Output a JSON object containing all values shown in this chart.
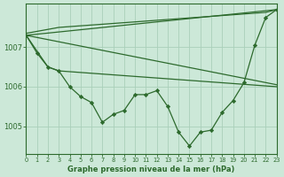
{
  "xlabel": "Graphe pression niveau de la mer (hPa)",
  "line_color": "#2d6a2d",
  "bg_color": "#cce8d8",
  "grid_color": "#aacfba",
  "yticks": [
    1005,
    1006,
    1007
  ],
  "ylim": [
    1004.3,
    1008.1
  ],
  "xlim": [
    0,
    23
  ],
  "figsize": [
    3.2,
    2.0
  ],
  "dpi": 100,
  "line1_x": [
    0,
    1,
    2,
    3,
    4,
    5,
    6,
    7,
    8,
    9,
    10,
    11,
    12,
    13,
    14,
    15,
    16,
    17,
    18,
    19,
    20,
    21,
    22,
    23
  ],
  "line1_y": [
    1007.35,
    1007.4,
    1007.45,
    1007.5,
    1007.52,
    1007.54,
    1007.56,
    1007.58,
    1007.6,
    1007.62,
    1007.64,
    1007.66,
    1007.68,
    1007.7,
    1007.72,
    1007.74,
    1007.76,
    1007.78,
    1007.8,
    1007.82,
    1007.84,
    1007.86,
    1007.88,
    1007.95
  ],
  "line2_x": [
    0,
    23
  ],
  "line2_y": [
    1007.3,
    1007.95
  ],
  "line3_x": [
    0,
    2,
    3,
    23
  ],
  "line3_y": [
    1007.3,
    1006.5,
    1006.4,
    1006.0
  ],
  "line4_x": [
    0,
    1,
    2,
    3,
    4,
    5,
    6,
    7,
    8,
    9,
    10,
    11,
    12,
    13,
    14,
    15,
    16,
    17,
    18,
    19,
    20,
    21,
    22,
    23
  ],
  "line4_y": [
    1007.3,
    1006.85,
    1006.5,
    1006.4,
    1006.0,
    1005.75,
    1005.6,
    1005.1,
    1005.3,
    1005.4,
    1005.8,
    1005.8,
    1005.9,
    1005.5,
    1004.85,
    1004.5,
    1004.85,
    1004.9,
    1005.35,
    1005.65,
    1006.1,
    1007.05,
    1007.75,
    1007.95
  ],
  "line5_x": [
    0,
    23
  ],
  "line5_y": [
    1007.3,
    1006.05
  ]
}
